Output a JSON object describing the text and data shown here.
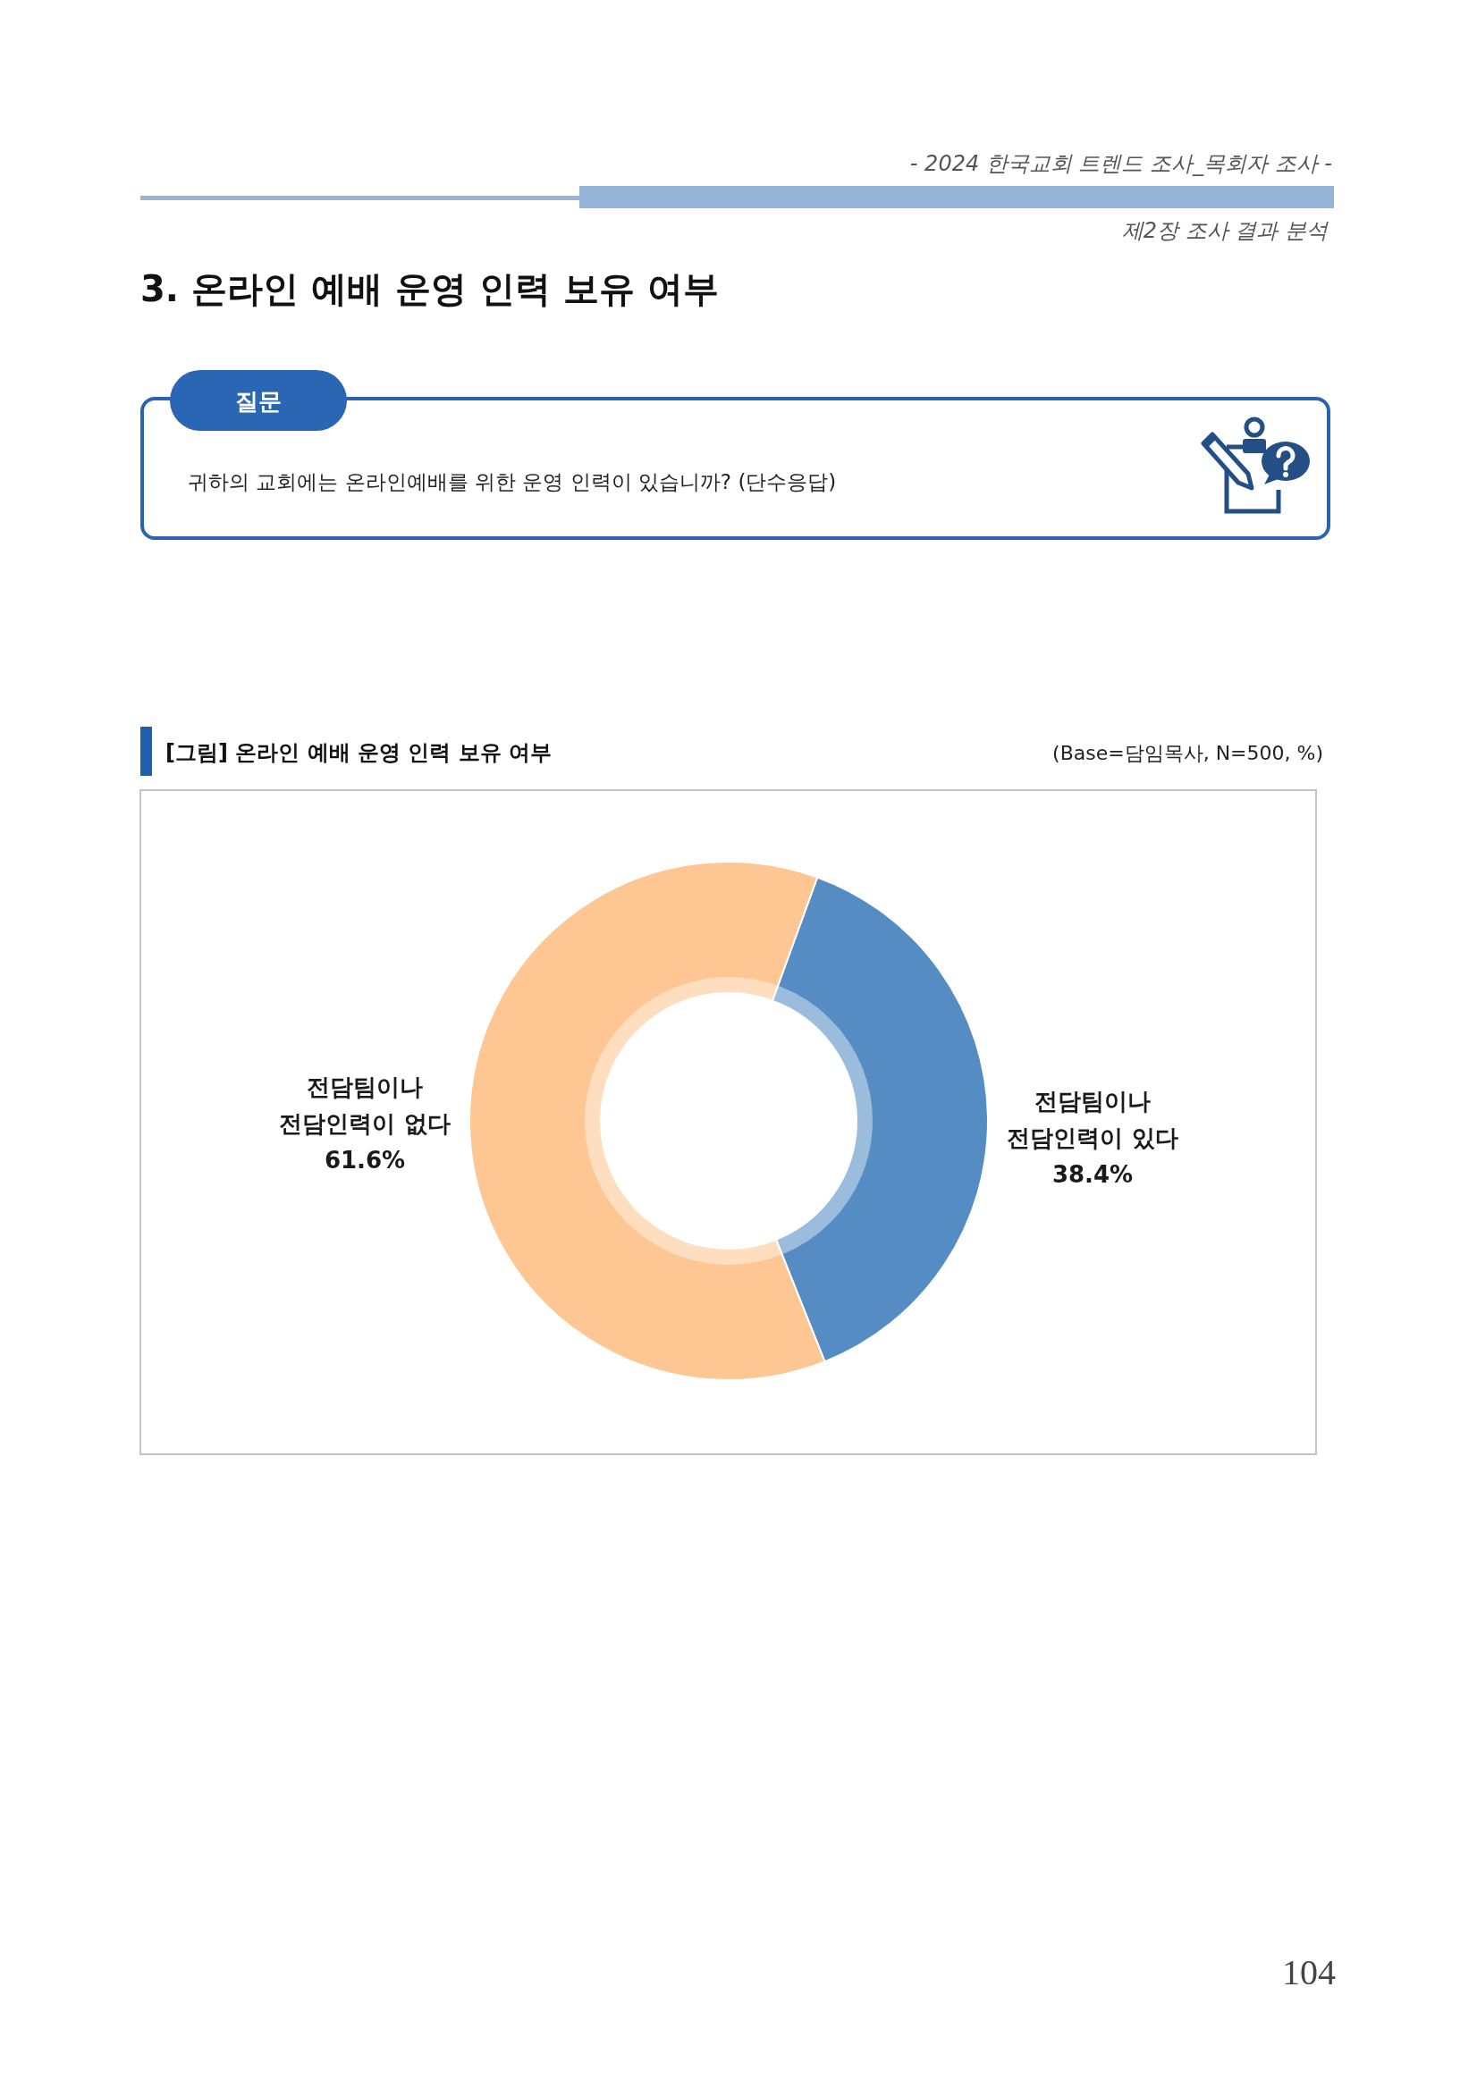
{
  "chart_data": {
    "type": "donut",
    "title": "[그림] 온라인 예배 운영 인력 보유 여부",
    "subtitle": "(Base=담임목사, N=500, %)",
    "categories": [
      "전담팀이나 전담인력이 있다",
      "전담팀이나 전담인력이 없다"
    ],
    "values": [
      38.4,
      61.6
    ],
    "colors": [
      "#548cc3",
      "#fdc692"
    ],
    "value_labels": [
      "38.4%",
      "61.6%"
    ],
    "annotations": [
      "- 2024 한국교회 트렌드 조사_목회자 조사 -",
      "제2장 조사 결과 분석",
      "3. 온라인 예배 운영 인력 보유 여부",
      "질문",
      "귀하의 교회에는 온라인예배를 위한 운영 인력이 있습니까? (단수응답)",
      "104"
    ]
  }
}
